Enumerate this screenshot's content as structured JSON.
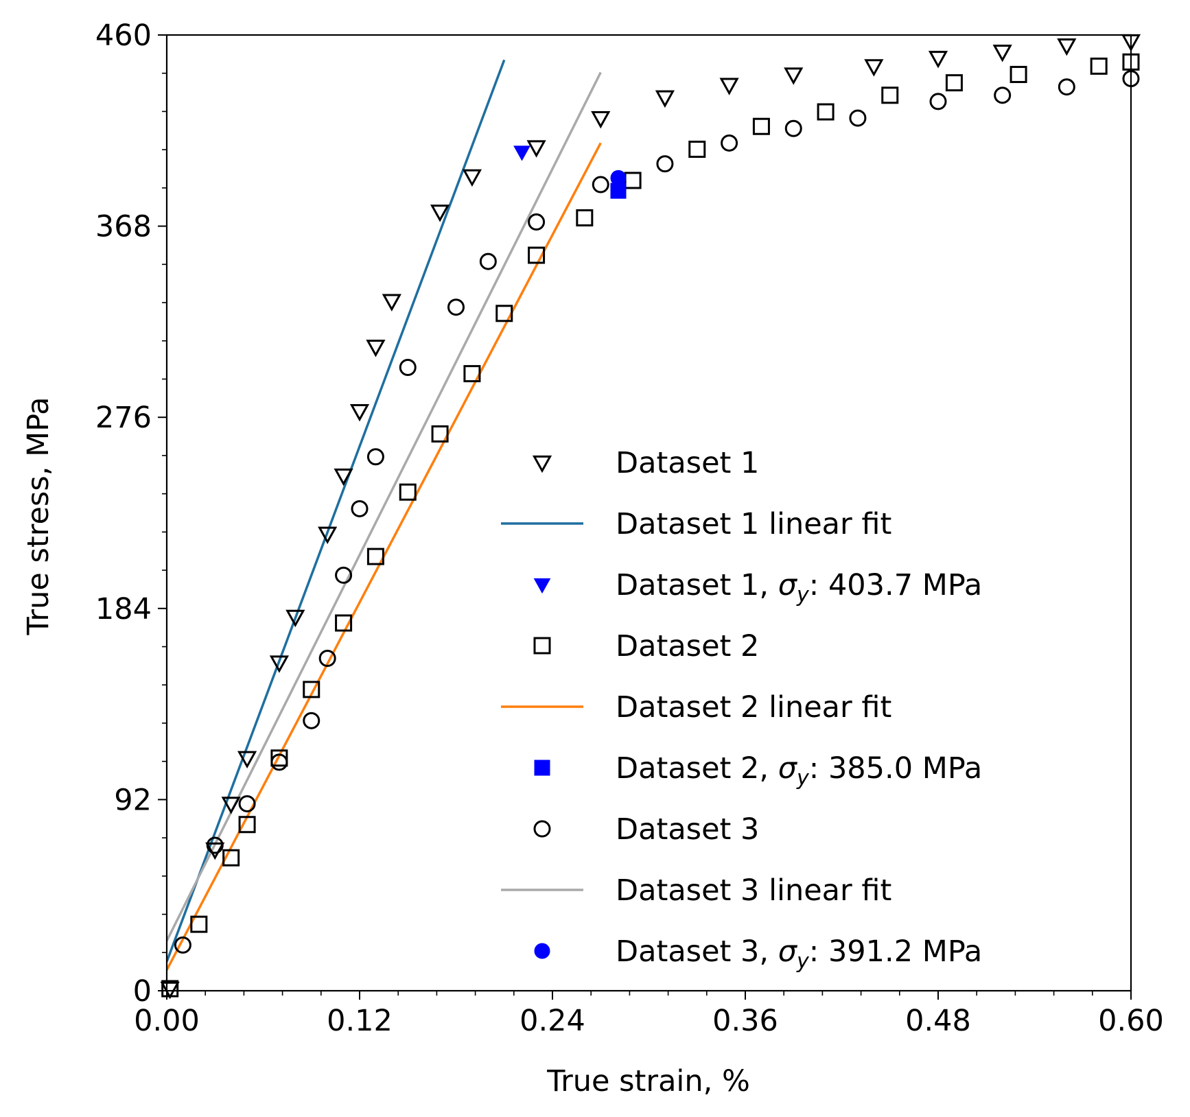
{
  "chart_data": {
    "type": "scatter",
    "xlabel": "True strain, %",
    "ylabel": "True stress, MPa",
    "xlim": [
      0.0,
      0.6
    ],
    "ylim": [
      0,
      460
    ],
    "xticks": [
      "0.00",
      "0.12",
      "0.24",
      "0.36",
      "0.48",
      "0.60"
    ],
    "yticks": [
      "0",
      "92",
      "184",
      "276",
      "368",
      "460"
    ],
    "grid": false,
    "legend_position": "lower-right",
    "colors": {
      "fit1": "#1f6f9f",
      "fit2": "#ff7f0e",
      "fit3": "#aaaaaa",
      "yield": "#0000ff",
      "marker": "#000000"
    },
    "series": [
      {
        "name": "Dataset 1",
        "kind": "markers",
        "marker": "triangle-down-open",
        "x": [
          0.002,
          0.03,
          0.04,
          0.05,
          0.07,
          0.08,
          0.1,
          0.11,
          0.12,
          0.13,
          0.14,
          0.17,
          0.19,
          0.23,
          0.27,
          0.31,
          0.35,
          0.39,
          0.44,
          0.48,
          0.52,
          0.56,
          0.6
        ],
        "y": [
          1,
          68,
          90,
          112,
          158,
          180,
          220,
          248,
          279,
          310,
          332,
          375,
          392,
          406,
          420,
          430,
          436,
          441,
          445,
          449,
          452,
          455,
          457
        ]
      },
      {
        "name": "Dataset 1 linear fit",
        "kind": "line",
        "color": "#1f6f9f",
        "x": [
          0.0,
          0.21
        ],
        "y": [
          14,
          448
        ]
      },
      {
        "name": "Dataset 1, σ_y: 403.7 MPa",
        "kind": "yield",
        "marker": "triangle-down-filled",
        "color": "#0000ff",
        "x": [
          0.221
        ],
        "y": [
          403.7
        ]
      },
      {
        "name": "Dataset 2",
        "kind": "markers",
        "marker": "square-open",
        "x": [
          0.002,
          0.02,
          0.04,
          0.05,
          0.07,
          0.09,
          0.11,
          0.13,
          0.15,
          0.17,
          0.19,
          0.21,
          0.23,
          0.26,
          0.29,
          0.33,
          0.37,
          0.41,
          0.45,
          0.49,
          0.53,
          0.58,
          0.6
        ],
        "y": [
          1,
          32,
          64,
          80,
          112,
          145,
          177,
          209,
          240,
          268,
          297,
          326,
          354,
          372,
          390,
          405,
          416,
          423,
          431,
          437,
          441,
          445,
          447
        ]
      },
      {
        "name": "Dataset 2 linear fit",
        "kind": "line",
        "color": "#ff7f0e",
        "x": [
          0.0,
          0.27
        ],
        "y": [
          10,
          408
        ]
      },
      {
        "name": "Dataset 2, σ_y: 385.0 MPa",
        "kind": "yield",
        "marker": "square-filled",
        "color": "#0000ff",
        "x": [
          0.281
        ],
        "y": [
          385.0
        ]
      },
      {
        "name": "Dataset 3",
        "kind": "markers",
        "marker": "circle-open",
        "x": [
          0.01,
          0.03,
          0.05,
          0.07,
          0.09,
          0.1,
          0.11,
          0.12,
          0.13,
          0.15,
          0.18,
          0.2,
          0.23,
          0.27,
          0.31,
          0.35,
          0.39,
          0.43,
          0.48,
          0.52,
          0.56,
          0.6
        ],
        "y": [
          22,
          70,
          90,
          110,
          130,
          160,
          200,
          232,
          257,
          300,
          329,
          351,
          370,
          388,
          398,
          408,
          415,
          420,
          428,
          431,
          435,
          439
        ]
      },
      {
        "name": "Dataset 3 linear fit",
        "kind": "line",
        "color": "#aaaaaa",
        "x": [
          0.0,
          0.27
        ],
        "y": [
          24,
          442
        ]
      },
      {
        "name": "Dataset 3, σ_y: 391.2 MPa",
        "kind": "yield",
        "marker": "circle-filled",
        "color": "#0000ff",
        "x": [
          0.281
        ],
        "y": [
          391.2
        ]
      }
    ],
    "legend": [
      {
        "pre": "Dataset 1",
        "post": "",
        "kind": "markers",
        "marker": "triangle-down-open",
        "color": "#000000"
      },
      {
        "pre": "Dataset 1 linear fit",
        "post": "",
        "kind": "line",
        "color": "#1f6f9f"
      },
      {
        "pre": "Dataset 1, ",
        "post": ": 403.7 MPa",
        "sym": "σ",
        "sub": "y",
        "kind": "yield",
        "marker": "triangle-down-filled",
        "color": "#0000ff"
      },
      {
        "pre": "Dataset 2",
        "post": "",
        "kind": "markers",
        "marker": "square-open",
        "color": "#000000"
      },
      {
        "pre": "Dataset 2 linear fit",
        "post": "",
        "kind": "line",
        "color": "#ff7f0e"
      },
      {
        "pre": "Dataset 2, ",
        "post": ": 385.0 MPa",
        "sym": "σ",
        "sub": "y",
        "kind": "yield",
        "marker": "square-filled",
        "color": "#0000ff"
      },
      {
        "pre": "Dataset 3",
        "post": "",
        "kind": "markers",
        "marker": "circle-open",
        "color": "#000000"
      },
      {
        "pre": "Dataset 3 linear fit",
        "post": "",
        "kind": "line",
        "color": "#aaaaaa"
      },
      {
        "pre": "Dataset 3, ",
        "post": ": 391.2 MPa",
        "sym": "σ",
        "sub": "y",
        "kind": "yield",
        "marker": "circle-filled",
        "color": "#0000ff"
      }
    ]
  }
}
